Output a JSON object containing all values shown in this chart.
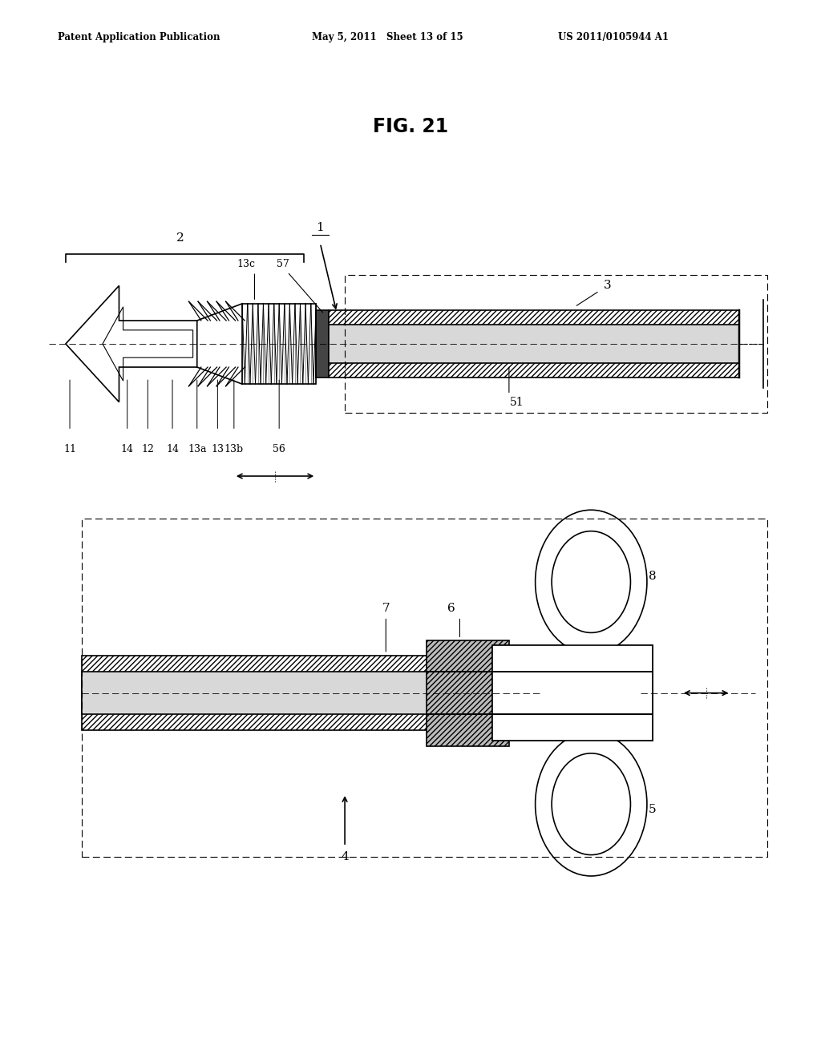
{
  "bg_color": "#ffffff",
  "title": "FIG. 21",
  "header_left": "Patent Application Publication",
  "header_mid": "May 5, 2011   Sheet 13 of 15",
  "header_right": "US 2011/0105944 A1",
  "fig_width": 10.24,
  "fig_height": 13.2
}
